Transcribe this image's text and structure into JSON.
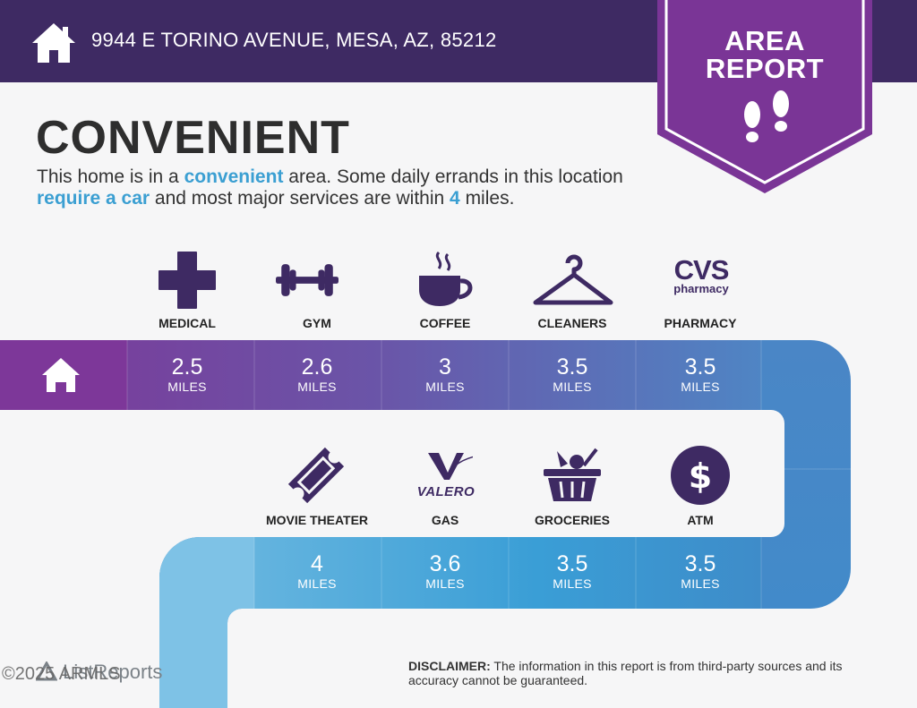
{
  "header": {
    "address": "9944 E TORINO AVENUE, MESA, AZ, 85212"
  },
  "badge": {
    "line1": "AREA",
    "line2": "REPORT"
  },
  "title": "CONVENIENT",
  "description": {
    "p1": "This home is in a ",
    "h1": "convenient",
    "p2": " area. Some daily errands in this location ",
    "h2": "require a car",
    "p3": " and most major services are within ",
    "h3": "4",
    "p4": " miles."
  },
  "row1": [
    {
      "label": "MEDICAL",
      "value": "2.5",
      "unit": "MILES",
      "icon": "medical-cross-icon"
    },
    {
      "label": "GYM",
      "value": "2.6",
      "unit": "MILES",
      "icon": "dumbbell-icon"
    },
    {
      "label": "COFFEE",
      "value": "3",
      "unit": "MILES",
      "icon": "coffee-cup-icon"
    },
    {
      "label": "CLEANERS",
      "value": "3.5",
      "unit": "MILES",
      "icon": "hanger-icon"
    },
    {
      "label": "PHARMACY",
      "value": "3.5",
      "unit": "MILES",
      "icon": "cvs-pharmacy-logo"
    }
  ],
  "row2": [
    {
      "label": "MOVIE THEATER",
      "value": "4",
      "unit": "MILES",
      "icon": "ticket-icon"
    },
    {
      "label": "GAS",
      "value": "3.6",
      "unit": "MILES",
      "icon": "valero-logo"
    },
    {
      "label": "GROCERIES",
      "value": "3.5",
      "unit": "MILES",
      "icon": "basket-icon"
    },
    {
      "label": "ATM",
      "value": "3.5",
      "unit": "MILES",
      "icon": "dollar-icon"
    }
  ],
  "logos": {
    "cvs_top": "CVS",
    "cvs_bottom": "pharmacy",
    "valero": "VALERO"
  },
  "disclaimer": {
    "label": "DISCLAIMER:",
    "text": " The information in this report is from third-party sources and its accuracy cannot be guaranteed."
  },
  "footer": {
    "brand": "ListReports",
    "copyright": "2025 ARMLS"
  },
  "colors": {
    "header": "#3e2a63",
    "badge": "#7a3596",
    "accent": "#3b9fd2",
    "icon": "#3e2a63"
  }
}
